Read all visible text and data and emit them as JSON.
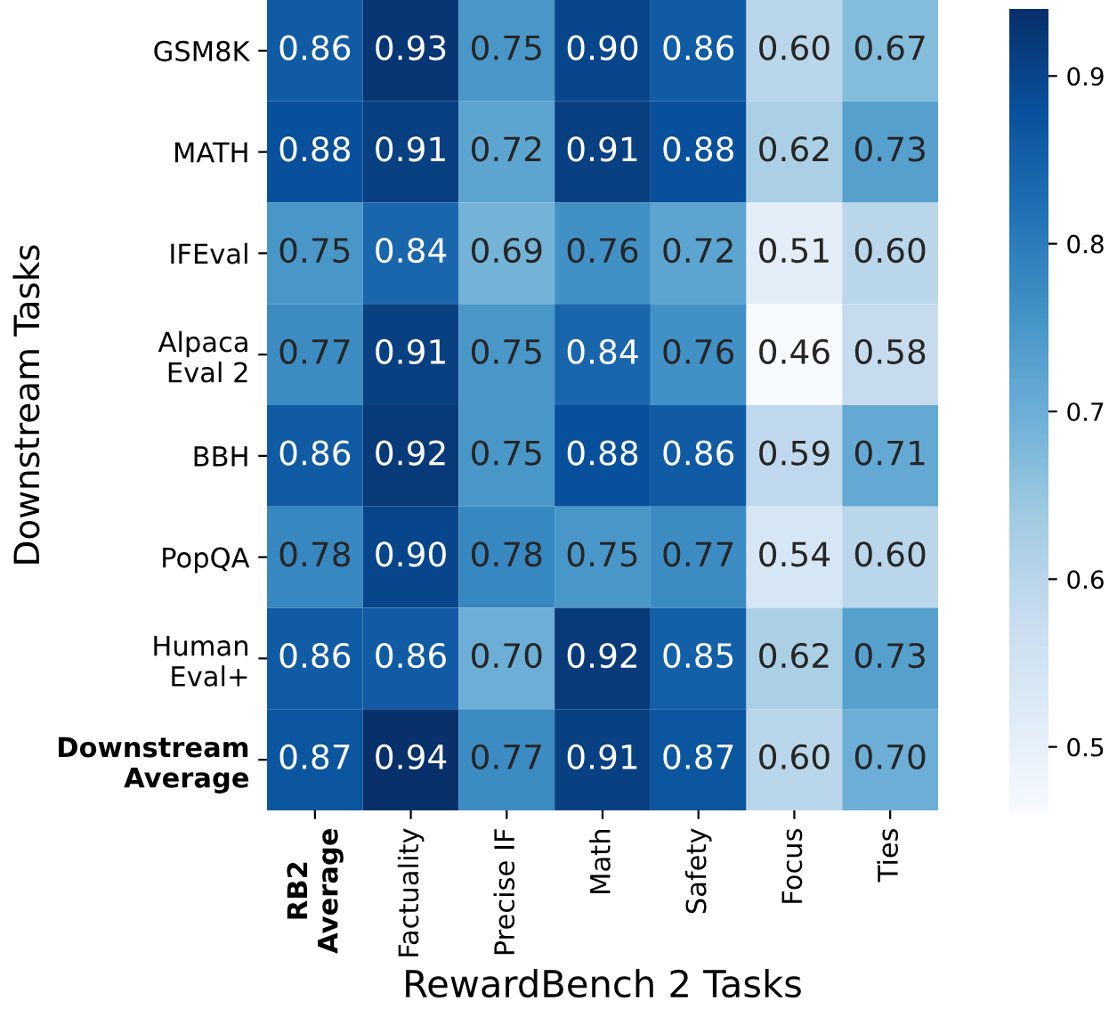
{
  "chart_data": {
    "type": "heatmap",
    "xlabel": "RewardBench 2 Tasks",
    "ylabel": "Downstream Tasks",
    "categories": [
      "RB2\nAverage",
      "Factuality",
      "Precise IF",
      "Math",
      "Safety",
      "Focus",
      "Ties"
    ],
    "y_categories": [
      "GSM8K",
      "MATH",
      "IFEval",
      "Alpaca\nEval 2",
      "BBH",
      "PopQA",
      "Human\nEval+",
      "Downstream\nAverage"
    ],
    "cells": [
      [
        0.86,
        0.93,
        0.75,
        0.9,
        0.86,
        0.6,
        0.67
      ],
      [
        0.88,
        0.91,
        0.72,
        0.91,
        0.88,
        0.62,
        0.73
      ],
      [
        0.75,
        0.84,
        0.69,
        0.76,
        0.72,
        0.51,
        0.6
      ],
      [
        0.77,
        0.91,
        0.75,
        0.84,
        0.76,
        0.46,
        0.58
      ],
      [
        0.86,
        0.92,
        0.75,
        0.88,
        0.86,
        0.59,
        0.71
      ],
      [
        0.78,
        0.9,
        0.78,
        0.75,
        0.77,
        0.54,
        0.6
      ],
      [
        0.86,
        0.86,
        0.7,
        0.92,
        0.85,
        0.62,
        0.73
      ],
      [
        0.87,
        0.94,
        0.77,
        0.91,
        0.87,
        0.6,
        0.7
      ]
    ],
    "cell_labels": [
      [
        "0.86",
        "0.93",
        "0.75",
        "0.90",
        "0.86",
        "0.60",
        "0.67"
      ],
      [
        "0.88",
        "0.91",
        "0.72",
        "0.91",
        "0.88",
        "0.62",
        "0.73"
      ],
      [
        "0.75",
        "0.84",
        "0.69",
        "0.76",
        "0.72",
        "0.51",
        "0.60"
      ],
      [
        "0.77",
        "0.91",
        "0.75",
        "0.84",
        "0.76",
        "0.46",
        "0.58"
      ],
      [
        "0.86",
        "0.92",
        "0.75",
        "0.88",
        "0.86",
        "0.59",
        "0.71"
      ],
      [
        "0.78",
        "0.90",
        "0.78",
        "0.75",
        "0.77",
        "0.54",
        "0.60"
      ],
      [
        "0.86",
        "0.86",
        "0.70",
        "0.92",
        "0.85",
        "0.62",
        "0.73"
      ],
      [
        "0.87",
        "0.94",
        "0.77",
        "0.91",
        "0.87",
        "0.60",
        "0.70"
      ]
    ],
    "clim": [
      0.46,
      0.94
    ],
    "cticks": [
      0.5,
      0.6,
      0.7,
      0.8,
      0.9
    ]
  }
}
